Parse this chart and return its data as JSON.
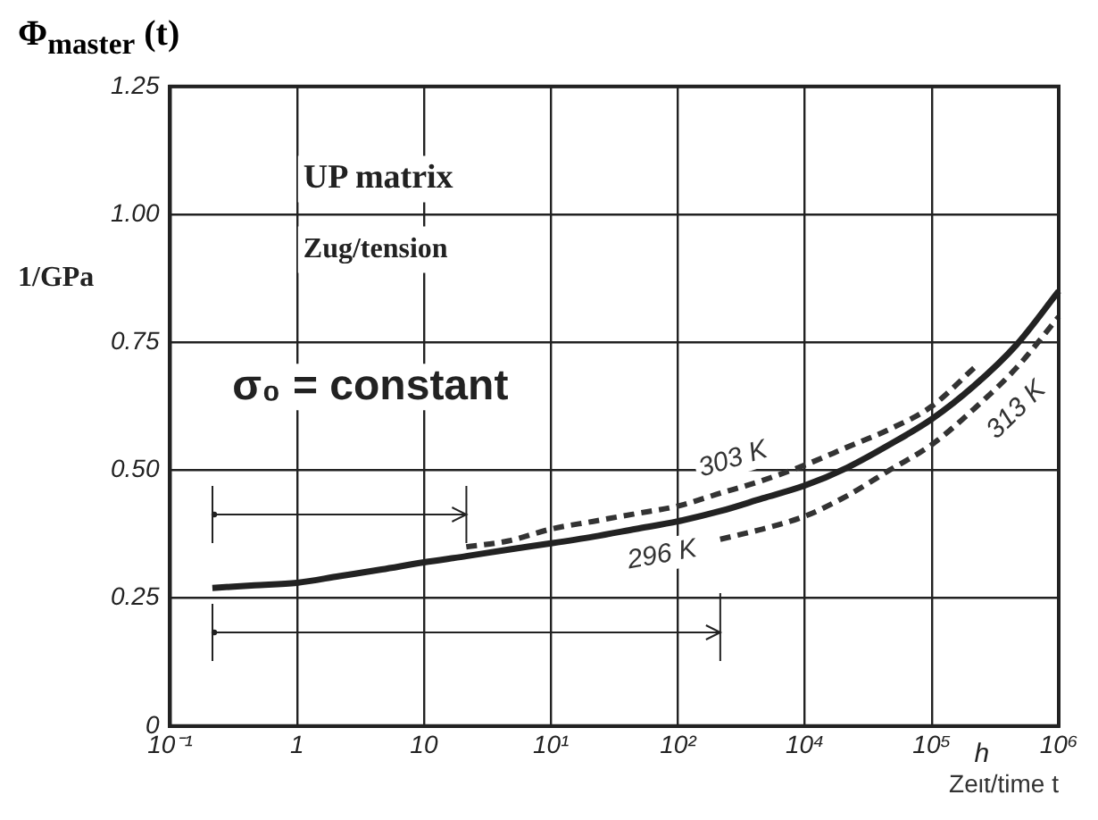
{
  "chart_data": {
    "type": "line",
    "title": "Φ$_{master}$ (t)",
    "ylabel": "1/GPa",
    "xlabel": "Zeit/time t",
    "annotations": [
      "UP matrix",
      "Zug/tension",
      "σ₀ = constant",
      "h"
    ],
    "categories": [
      "10⁻¹",
      null,
      null,
      "1",
      null,
      null,
      "10",
      null,
      null,
      "10¹",
      null,
      null,
      "10²",
      null,
      null,
      "10⁴",
      null,
      null,
      "10⁵",
      null,
      null,
      "10⁶"
    ],
    "ylim": [
      0,
      1.25
    ],
    "yticks": [
      {
        "value": 0,
        "label": "0"
      },
      {
        "value": 0.25,
        "label": "0.25"
      },
      {
        "value": 0.5,
        "label": "0.50"
      },
      {
        "value": 0.75,
        "label": "0.75"
      },
      {
        "value": 1,
        "label": "1.00"
      },
      {
        "value": 1.25,
        "label": "1.25"
      }
    ],
    "grid": true,
    "legend": false,
    "marker": "none",
    "series": [
      {
        "name": "296 K",
        "color": "#222222",
        "line_style": "solid",
        "values": [
          null,
          0.27,
          0.275,
          0.28,
          0.293,
          0.306,
          0.32,
          0.332,
          0.345,
          0.357,
          0.37,
          0.385,
          0.4,
          0.42,
          0.445,
          0.47,
          0.505,
          0.55,
          0.6,
          0.665,
          0.745,
          0.85
        ]
      },
      {
        "name": "303 K",
        "color": "#333333",
        "line_style": "dashed",
        "values": [
          null,
          null,
          null,
          null,
          null,
          null,
          null,
          0.35,
          0.362,
          0.385,
          0.4,
          0.415,
          0.43,
          0.455,
          0.48,
          0.51,
          0.545,
          0.58,
          0.625,
          0.7,
          null,
          null
        ]
      },
      {
        "name": "313 K",
        "color": "#333333",
        "line_style": "dashed",
        "values": [
          null,
          null,
          null,
          null,
          null,
          null,
          null,
          null,
          null,
          null,
          null,
          null,
          null,
          0.365,
          0.385,
          0.41,
          0.45,
          0.5,
          0.55,
          0.62,
          0.7,
          0.8
        ]
      }
    ]
  }
}
